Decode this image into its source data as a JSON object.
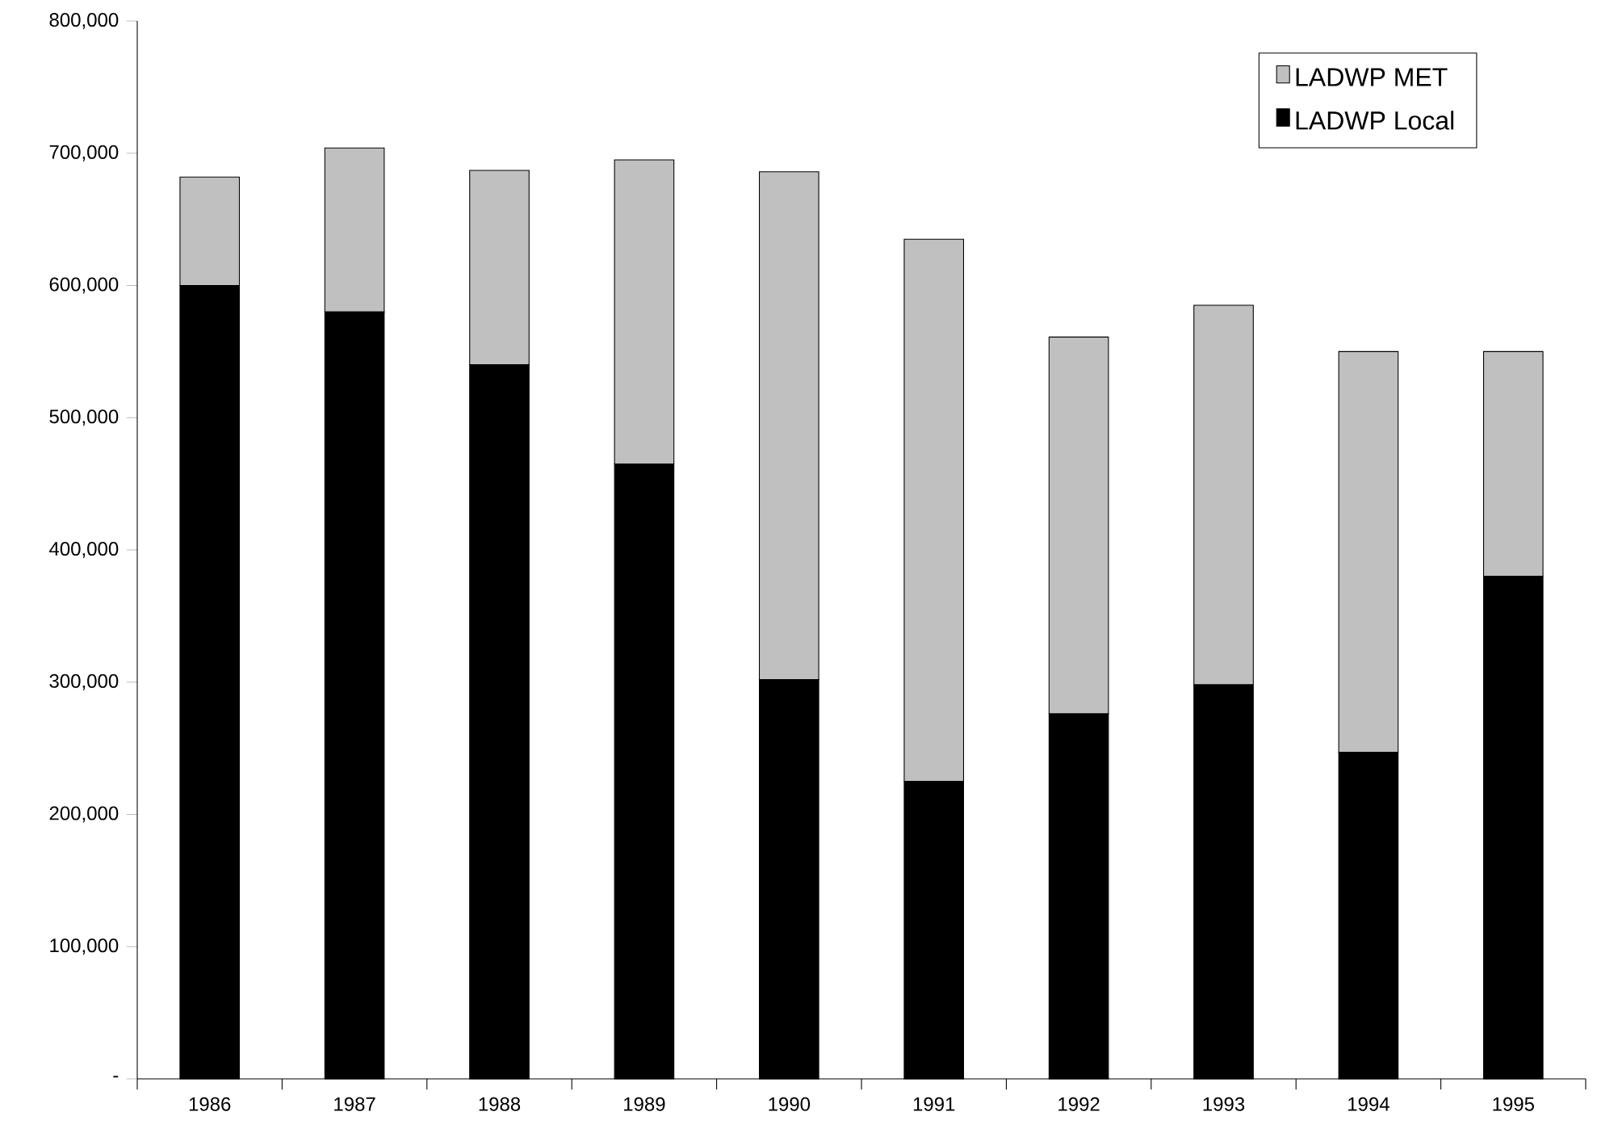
{
  "chart_data": {
    "type": "bar",
    "stacked": true,
    "categories": [
      "1986",
      "1987",
      "1988",
      "1989",
      "1990",
      "1991",
      "1992",
      "1993",
      "1994",
      "1995"
    ],
    "series": [
      {
        "name": "LADWP Local",
        "color": "#000000",
        "values": [
          600000,
          580000,
          540000,
          465000,
          302000,
          225000,
          276000,
          298000,
          247000,
          380000
        ]
      },
      {
        "name": "LADWP MET",
        "color": "#c0c0c0",
        "values": [
          82000,
          124000,
          147000,
          230000,
          384000,
          410000,
          285000,
          287000,
          303000,
          170000
        ]
      }
    ],
    "ylim": [
      0,
      800000
    ],
    "yticks": [
      {
        "value": 0,
        "label": "-"
      },
      {
        "value": 100000,
        "label": "100,000"
      },
      {
        "value": 200000,
        "label": "200,000"
      },
      {
        "value": 300000,
        "label": "300,000"
      },
      {
        "value": 400000,
        "label": "400,000"
      },
      {
        "value": 500000,
        "label": "500,000"
      },
      {
        "value": 600000,
        "label": "600,000"
      },
      {
        "value": 700000,
        "label": "700,000"
      },
      {
        "value": 800000,
        "label": "800,000"
      }
    ],
    "grid": false,
    "legend": "top right"
  }
}
